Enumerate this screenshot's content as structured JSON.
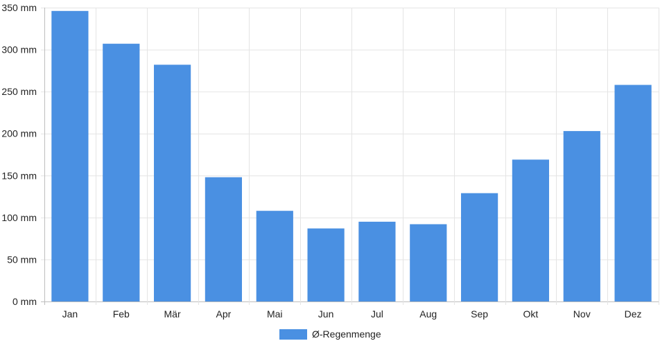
{
  "chart_data": {
    "type": "bar",
    "title": "",
    "xlabel": "",
    "ylabel": "",
    "unit": "mm",
    "ylim": [
      0,
      350
    ],
    "yticks": [
      0,
      50,
      100,
      150,
      200,
      250,
      300,
      350
    ],
    "ytick_labels": [
      "0 mm",
      "50 mm",
      "100 mm",
      "150 mm",
      "200 mm",
      "250 mm",
      "300 mm",
      "350 mm"
    ],
    "categories": [
      "Jan",
      "Feb",
      "Mär",
      "Apr",
      "Mai",
      "Jun",
      "Jul",
      "Aug",
      "Sep",
      "Okt",
      "Nov",
      "Dez"
    ],
    "series": [
      {
        "name": "Ø-Regenmenge",
        "color": "#4a90e2",
        "values": [
          346,
          307,
          282,
          148,
          108,
          87,
          95,
          92,
          129,
          169,
          203,
          258
        ]
      }
    ],
    "grid": true,
    "legend_position": "bottom-center"
  }
}
